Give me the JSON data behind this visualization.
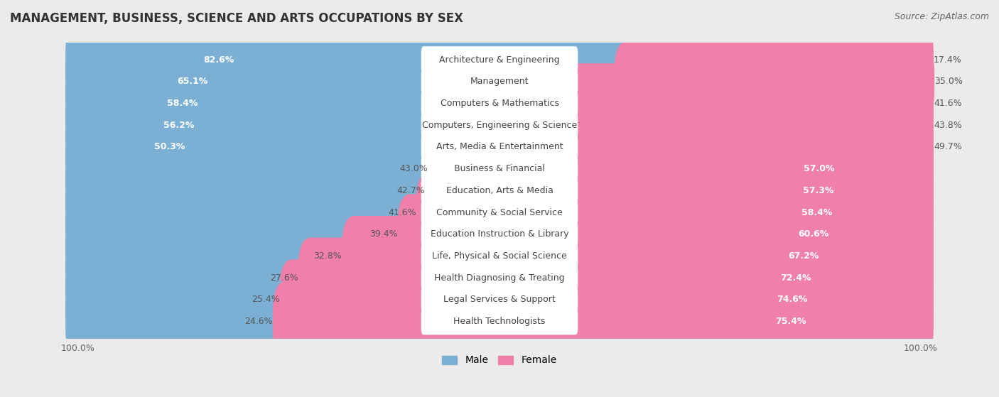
{
  "title": "MANAGEMENT, BUSINESS, SCIENCE AND ARTS OCCUPATIONS BY SEX",
  "source": "Source: ZipAtlas.com",
  "categories": [
    "Architecture & Engineering",
    "Management",
    "Computers & Mathematics",
    "Computers, Engineering & Science",
    "Arts, Media & Entertainment",
    "Business & Financial",
    "Education, Arts & Media",
    "Community & Social Service",
    "Education Instruction & Library",
    "Life, Physical & Social Science",
    "Health Diagnosing & Treating",
    "Legal Services & Support",
    "Health Technologists"
  ],
  "male_pct": [
    82.6,
    65.1,
    58.4,
    56.2,
    50.3,
    43.0,
    42.7,
    41.6,
    39.4,
    32.8,
    27.6,
    25.4,
    24.6
  ],
  "female_pct": [
    17.4,
    35.0,
    41.6,
    43.8,
    49.7,
    57.0,
    57.3,
    58.4,
    60.6,
    67.2,
    72.4,
    74.6,
    75.4
  ],
  "male_color": "#7bafd4",
  "female_color": "#f07faa",
  "background_color": "#ebebeb",
  "bar_background": "#ffffff",
  "bar_height": 0.68,
  "label_fontsize": 9.0,
  "title_fontsize": 12,
  "source_fontsize": 9,
  "legend_fontsize": 10
}
